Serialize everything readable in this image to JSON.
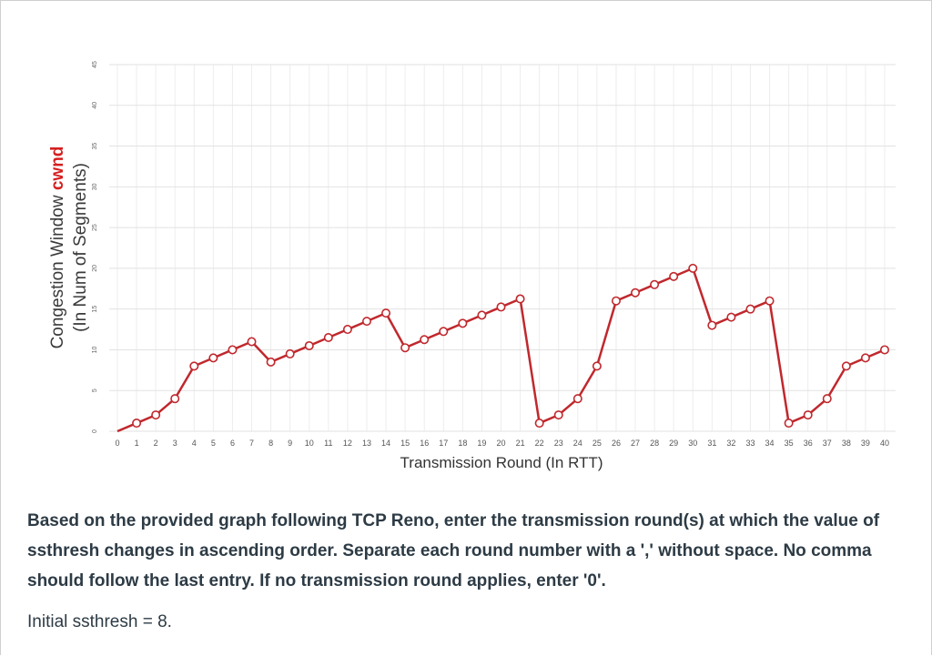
{
  "chart_data": {
    "type": "line",
    "title": "",
    "ylabel_line1_prefix": "Congestion Window ",
    "ylabel_line1_emph": "cwnd",
    "ylabel_line2": "(In Num of Segments)",
    "xlabel": "Transmission Round (In RTT)",
    "xlim": [
      0,
      40
    ],
    "ylim": [
      0,
      45
    ],
    "yticks": [
      0,
      5,
      10,
      15,
      20,
      25,
      30,
      35,
      40,
      45
    ],
    "xticks": [
      0,
      1,
      2,
      3,
      4,
      5,
      6,
      7,
      8,
      9,
      10,
      11,
      12,
      13,
      14,
      15,
      16,
      17,
      18,
      19,
      20,
      21,
      22,
      23,
      24,
      25,
      26,
      27,
      28,
      29,
      30,
      31,
      32,
      33,
      34,
      35,
      36,
      37,
      38,
      39,
      40
    ],
    "grid": true,
    "series": [
      {
        "x": [
          0,
          1,
          2,
          3,
          4,
          5,
          6,
          7,
          8,
          9,
          10,
          11,
          12,
          13,
          14,
          15,
          16,
          17,
          18,
          19,
          20,
          21,
          22,
          23,
          24,
          25,
          26,
          27,
          28,
          29,
          30,
          31,
          32,
          33,
          34,
          35,
          36,
          37,
          38,
          39,
          40
        ],
        "values": [
          0,
          1,
          2,
          4,
          8,
          9,
          10,
          11,
          8.5,
          9.5,
          10.5,
          11.5,
          12.5,
          13.5,
          14.5,
          10.25,
          11.25,
          12.25,
          13.25,
          14.25,
          15.25,
          16.25,
          1,
          2,
          4,
          8,
          16,
          17,
          18,
          19,
          20,
          13,
          14,
          15,
          16,
          1,
          2,
          4,
          8,
          9,
          10
        ],
        "color": "#c0282d"
      }
    ]
  },
  "question": {
    "text": "Based on the provided graph following TCP Reno, enter the transmission round(s) at which the value of ssthresh changes in ascending order. Separate each round number with a ',' without space. No comma should follow the last entry. If no transmission round applies, enter '0'.",
    "initial": "Initial ssthresh = 8."
  }
}
